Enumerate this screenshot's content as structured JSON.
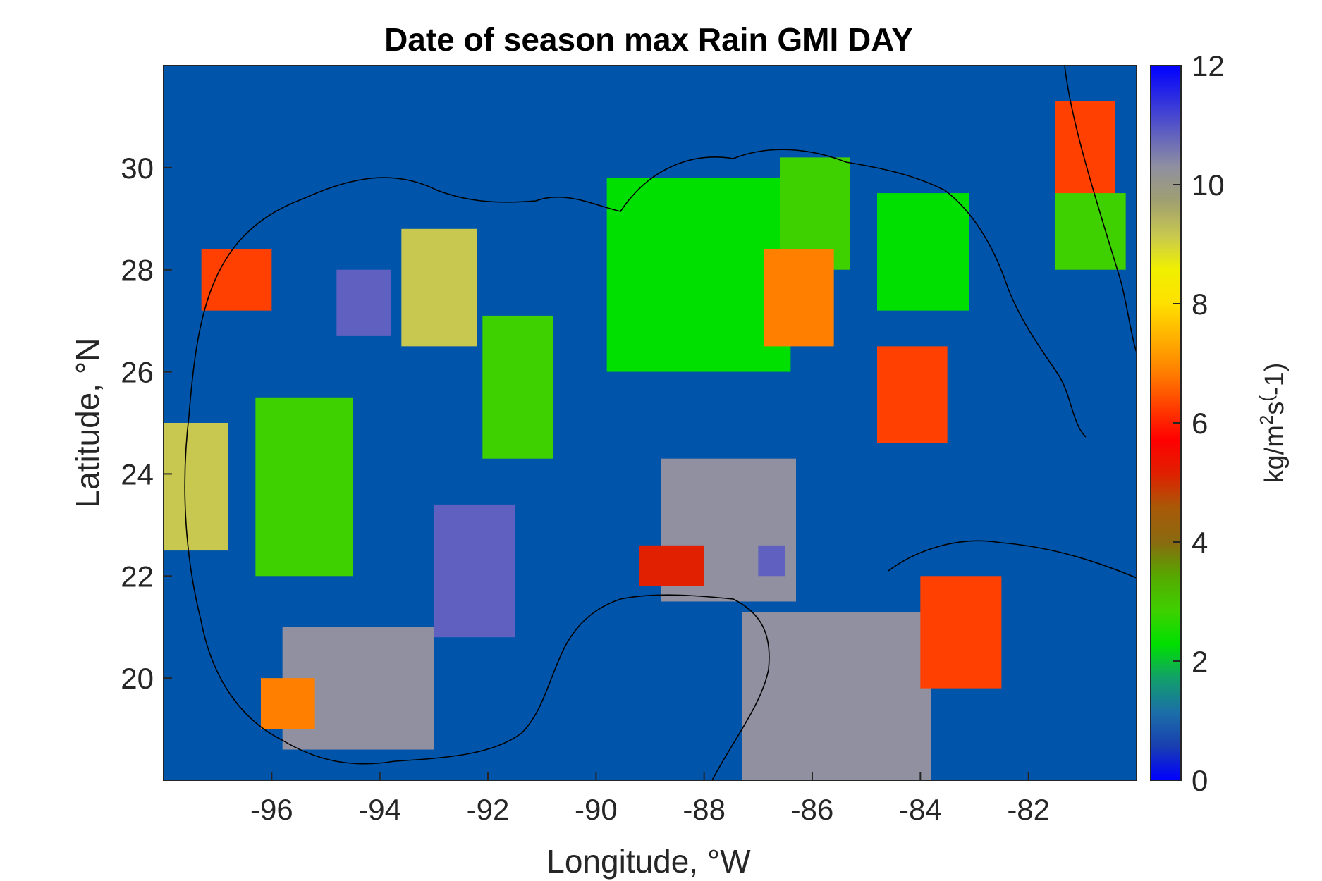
{
  "chart_data": {
    "type": "heatmap",
    "title": "Date of season max Rain GMI DAY",
    "xlabel": "Longitude, °W",
    "ylabel": "Latitude, °N",
    "xlim": [
      -98,
      -80
    ],
    "ylim": [
      18,
      32
    ],
    "x_ticks": [
      -96,
      -94,
      -92,
      -90,
      -88,
      -86,
      -84,
      -82
    ],
    "y_ticks": [
      20,
      22,
      24,
      26,
      28,
      30
    ],
    "colorbar": {
      "label": "kg/m²s⁽-1)",
      "label_base": "kg/m",
      "label_sup": "2",
      "label_mid": "s",
      "label_sup2": "(",
      "label_end": "-1)",
      "range": [
        0,
        12
      ],
      "ticks": [
        0,
        2,
        4,
        6,
        8,
        10,
        12
      ],
      "colormap": [
        "#0000ff",
        "#1a3fb0",
        "#1b6fa8",
        "#12a06a",
        "#00e000",
        "#3fd000",
        "#56a800",
        "#8a6a10",
        "#a85a08",
        "#e02000",
        "#ff0000",
        "#ff4000",
        "#ff8000",
        "#ffb000",
        "#ffe000",
        "#f0f000",
        "#c8c850",
        "#a0a070",
        "#9090a0",
        "#6060c0",
        "#3030e0",
        "#0000ff"
      ]
    },
    "ocean_background_color": "#0055aa",
    "grid": false,
    "regions": [
      {
        "value": 6,
        "lon": [
          -97.3,
          -96.0
        ],
        "lat": [
          27.2,
          28.4
        ]
      },
      {
        "value": 11,
        "lon": [
          -94.8,
          -93.8
        ],
        "lat": [
          26.7,
          28.0
        ]
      },
      {
        "value": 9,
        "lon": [
          -93.6,
          -92.2
        ],
        "lat": [
          26.5,
          28.8
        ]
      },
      {
        "value": 3,
        "lon": [
          -96.3,
          -94.5
        ],
        "lat": [
          22.0,
          25.5
        ]
      },
      {
        "value": 3,
        "lon": [
          -92.1,
          -90.8
        ],
        "lat": [
          24.3,
          27.1
        ]
      },
      {
        "value": 2,
        "lon": [
          -89.8,
          -86.4
        ],
        "lat": [
          26.0,
          29.8
        ]
      },
      {
        "value": 3,
        "lon": [
          -86.6,
          -85.3
        ],
        "lat": [
          28.0,
          30.2
        ]
      },
      {
        "value": 2,
        "lon": [
          -84.8,
          -83.1
        ],
        "lat": [
          27.2,
          29.5
        ]
      },
      {
        "value": 6,
        "lon": [
          -84.8,
          -83.5
        ],
        "lat": [
          24.6,
          26.5
        ]
      },
      {
        "value": 7,
        "lon": [
          -86.9,
          -85.6
        ],
        "lat": [
          26.5,
          28.4
        ]
      },
      {
        "value": 10,
        "lon": [
          -88.8,
          -86.3
        ],
        "lat": [
          21.5,
          24.3
        ]
      },
      {
        "value": 10,
        "lon": [
          -87.3,
          -83.8
        ],
        "lat": [
          18.0,
          21.3
        ]
      },
      {
        "value": 6,
        "lon": [
          -84.0,
          -82.5
        ],
        "lat": [
          19.8,
          22.0
        ]
      },
      {
        "value": 10,
        "lon": [
          -95.8,
          -93.0
        ],
        "lat": [
          18.6,
          21.0
        ]
      },
      {
        "value": 11,
        "lon": [
          -93.0,
          -91.5
        ],
        "lat": [
          20.8,
          23.4
        ]
      },
      {
        "value": 7,
        "lon": [
          -96.2,
          -95.2
        ],
        "lat": [
          19.0,
          20.0
        ]
      },
      {
        "value": 9,
        "lon": [
          -98.0,
          -96.8
        ],
        "lat": [
          22.5,
          25.0
        ]
      },
      {
        "value": 5,
        "lon": [
          -89.2,
          -88.0
        ],
        "lat": [
          21.8,
          22.6
        ]
      },
      {
        "value": 11,
        "lon": [
          -87.0,
          -86.5
        ],
        "lat": [
          22.0,
          22.6
        ]
      },
      {
        "value": 6,
        "lon": [
          -81.5,
          -80.4
        ],
        "lat": [
          29.3,
          31.3
        ]
      },
      {
        "value": 3,
        "lon": [
          -81.5,
          -80.2
        ],
        "lat": [
          28.0,
          29.5
        ]
      }
    ]
  }
}
